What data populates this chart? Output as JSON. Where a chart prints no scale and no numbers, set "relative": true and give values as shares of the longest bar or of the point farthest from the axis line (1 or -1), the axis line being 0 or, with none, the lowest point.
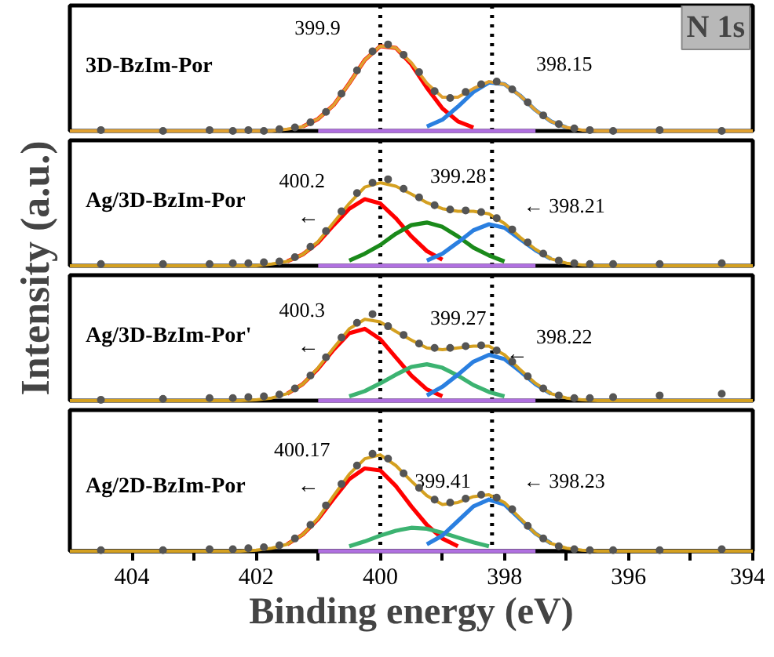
{
  "chart_data": [
    {
      "type": "line",
      "relative": true,
      "title": "3D-BzIm-Por",
      "ylabel": "Intensity (a.u.)",
      "xlim": [
        405,
        394
      ],
      "tick_labels": false,
      "x": [
        405,
        404,
        403,
        402.5,
        402.25,
        402,
        401.75,
        401.5,
        401.25,
        401,
        400.75,
        400.5,
        400.25,
        400,
        399.75,
        399.5,
        399.25,
        399,
        398.75,
        398.5,
        398.25,
        398,
        397.75,
        397.5,
        397.25,
        397,
        396.75,
        396.5,
        396,
        395,
        394
      ],
      "ref_lines": [
        {
          "axis": "x",
          "value": 400,
          "line_style": "dotted",
          "color": "#000000"
        },
        {
          "axis": "x",
          "value": 398.2,
          "line_style": "dotted",
          "color": "#000000"
        }
      ],
      "annotations": [
        "N 1s",
        {
          "text": "399.9",
          "x": 400,
          "y": 0.98
        },
        {
          "text": "398.15",
          "x": 398.25,
          "y": 0.56
        }
      ],
      "series": [
        {
          "color": "#b070e0",
          "values": [
            null,
            null,
            null,
            null,
            null,
            null,
            null,
            null,
            null,
            0,
            0,
            0,
            0,
            0,
            0,
            0,
            0,
            0,
            0,
            0,
            0,
            0,
            0,
            0,
            null,
            null,
            null,
            null,
            null,
            null,
            null
          ]
        },
        {
          "color": "#ff0000",
          "values": [
            null,
            null,
            null,
            null,
            null,
            null,
            null,
            null,
            0.05,
            0.14,
            0.3,
            0.55,
            0.82,
            0.98,
            0.96,
            0.77,
            0.5,
            0.26,
            0.11,
            0.04,
            null,
            null,
            null,
            null,
            null,
            null,
            null,
            null,
            null,
            null,
            null
          ]
        },
        {
          "color": "#2a7fe0",
          "values": [
            null,
            null,
            null,
            null,
            null,
            null,
            null,
            null,
            null,
            null,
            null,
            null,
            null,
            null,
            null,
            null,
            0.05,
            0.13,
            0.28,
            0.45,
            0.56,
            0.54,
            0.41,
            0.24,
            0.11,
            0.04,
            null,
            null,
            null,
            null,
            null
          ]
        },
        {
          "color": "#e0a030",
          "values": [
            0,
            0,
            0,
            0,
            0,
            0,
            0,
            0.02,
            0.05,
            0.14,
            0.3,
            0.55,
            0.82,
            0.98,
            0.96,
            0.79,
            0.55,
            0.39,
            0.39,
            0.49,
            0.57,
            0.54,
            0.41,
            0.24,
            0.11,
            0.04,
            0.01,
            0,
            0,
            0,
            0
          ]
        },
        {
          "type": "scatter",
          "marker": "circle",
          "color": "#555555",
          "x": [
            404.5,
            403.5,
            402.75,
            402.375,
            402.125,
            401.875,
            401.625,
            401.375,
            401.125,
            400.875,
            400.625,
            400.375,
            400.125,
            399.875,
            399.625,
            399.375,
            399.125,
            398.875,
            398.625,
            398.375,
            398.125,
            397.875,
            397.625,
            397.375,
            397.125,
            396.875,
            396.625,
            396.25,
            395.5,
            394.5
          ],
          "values": [
            0.01,
            0.0,
            0.01,
            0.0,
            0.01,
            0.0,
            0.02,
            0.04,
            0.1,
            0.22,
            0.43,
            0.7,
            0.92,
            1.0,
            0.88,
            0.68,
            0.46,
            0.38,
            0.45,
            0.54,
            0.57,
            0.48,
            0.33,
            0.18,
            0.08,
            0.03,
            0.01,
            0.0,
            0.01,
            0.0
          ]
        }
      ]
    },
    {
      "type": "line",
      "relative": true,
      "title": "Ag/3D-BzIm-Por",
      "xlim": [
        405,
        394
      ],
      "tick_labels": false,
      "x": [
        405,
        404,
        403,
        402.5,
        402.25,
        402,
        401.75,
        401.5,
        401.25,
        401,
        400.75,
        400.5,
        400.25,
        400,
        399.75,
        399.5,
        399.25,
        399,
        398.75,
        398.5,
        398.25,
        398,
        397.75,
        397.5,
        397.25,
        397,
        396.75,
        396.5,
        396,
        395,
        394
      ],
      "ref_lines": [
        {
          "axis": "x",
          "value": 400,
          "line_style": "dotted",
          "color": "#000000"
        },
        {
          "axis": "x",
          "value": 398.2,
          "line_style": "dotted",
          "color": "#000000"
        }
      ],
      "annotations": [
        {
          "text": "400.2",
          "x": 400.25,
          "y": 0.77
        },
        {
          "text": "←",
          "x": 400.25,
          "y": 0.77
        },
        {
          "text": "399.28",
          "x": 399.25,
          "y": 0.5
        },
        {
          "text": "← 398.21",
          "x": 398.25,
          "y": 0.48
        }
      ],
      "series": [
        {
          "color": "#b070e0",
          "values": [
            null,
            null,
            null,
            null,
            null,
            null,
            null,
            null,
            null,
            0,
            0,
            0,
            0,
            0,
            0,
            0,
            0,
            0,
            0,
            0,
            0,
            0,
            0,
            0,
            null,
            null,
            null,
            null,
            null,
            null,
            null
          ]
        },
        {
          "color": "#ff0000",
          "values": [
            null,
            null,
            null,
            null,
            null,
            null,
            null,
            0.05,
            0.13,
            0.27,
            0.47,
            0.66,
            0.77,
            0.72,
            0.55,
            0.34,
            0.17,
            0.07,
            null,
            null,
            null,
            null,
            null,
            null,
            null,
            null,
            null,
            null,
            null,
            null,
            null
          ]
        },
        {
          "color": "#1a8a1a",
          "values": [
            null,
            null,
            null,
            null,
            null,
            null,
            null,
            null,
            null,
            null,
            null,
            0.06,
            0.14,
            0.24,
            0.37,
            0.47,
            0.5,
            0.45,
            0.34,
            0.21,
            0.12,
            0.05,
            null,
            null,
            null,
            null,
            null,
            null,
            null,
            null,
            null
          ]
        },
        {
          "color": "#2a7fe0",
          "values": [
            null,
            null,
            null,
            null,
            null,
            null,
            null,
            null,
            null,
            null,
            null,
            null,
            null,
            null,
            null,
            null,
            0.06,
            0.14,
            0.27,
            0.41,
            0.48,
            0.44,
            0.31,
            0.18,
            0.08,
            null,
            null,
            null,
            null,
            null,
            null
          ]
        },
        {
          "color": "#d4a020",
          "values": [
            0,
            0,
            0,
            0,
            0,
            0,
            0.02,
            0.05,
            0.13,
            0.28,
            0.5,
            0.72,
            0.91,
            0.96,
            0.92,
            0.83,
            0.73,
            0.66,
            0.63,
            0.63,
            0.6,
            0.49,
            0.33,
            0.19,
            0.08,
            0.03,
            0.01,
            0,
            0,
            0,
            0
          ]
        },
        {
          "type": "scatter",
          "marker": "circle",
          "color": "#555555",
          "x": [
            404.5,
            403.5,
            402.75,
            402.375,
            402.125,
            401.875,
            401.625,
            401.375,
            401.125,
            400.875,
            400.625,
            400.375,
            400.125,
            399.875,
            399.625,
            399.375,
            399.125,
            398.875,
            398.625,
            398.375,
            398.125,
            397.875,
            397.625,
            397.375,
            397.125,
            396.875,
            396.625,
            396.25,
            395.5,
            394.5
          ],
          "values": [
            0.02,
            0.02,
            0.02,
            0.03,
            0.03,
            0.04,
            0.05,
            0.1,
            0.22,
            0.4,
            0.63,
            0.84,
            0.96,
            1.0,
            0.89,
            0.79,
            0.7,
            0.65,
            0.64,
            0.62,
            0.55,
            0.42,
            0.27,
            0.14,
            0.06,
            0.03,
            0.02,
            0.02,
            0.02,
            0.03
          ]
        }
      ]
    },
    {
      "type": "line",
      "relative": true,
      "title": "Ag/3D-BzIm-Por'",
      "xlim": [
        405,
        394
      ],
      "tick_labels": false,
      "x": [
        405,
        404,
        403,
        402.5,
        402.25,
        402,
        401.75,
        401.5,
        401.25,
        401,
        400.75,
        400.5,
        400.25,
        400,
        399.75,
        399.5,
        399.25,
        399,
        398.75,
        398.5,
        398.25,
        398,
        397.75,
        397.5,
        397.25,
        397,
        396.75,
        396.5,
        396,
        395,
        394
      ],
      "ref_lines": [
        {
          "axis": "x",
          "value": 400,
          "line_style": "dotted",
          "color": "#000000"
        },
        {
          "axis": "x",
          "value": 398.2,
          "line_style": "dotted",
          "color": "#000000"
        }
      ],
      "annotations": [
        {
          "text": "400.3",
          "x": 400.25,
          "y": 0.83
        },
        {
          "text": "←",
          "x": 400.25,
          "y": 0.83
        },
        {
          "text": "399.27",
          "x": 399.25,
          "y": 0.42
        },
        {
          "text": "398.22",
          "x": 398.25,
          "y": 0.53
        },
        {
          "text": "←",
          "x": 398.25,
          "y": 0.53
        }
      ],
      "series": [
        {
          "color": "#b070e0",
          "values": [
            null,
            null,
            null,
            null,
            null,
            null,
            null,
            null,
            null,
            0,
            0,
            0,
            0,
            0,
            0,
            0,
            0,
            0,
            0,
            0,
            0,
            0,
            0,
            0,
            null,
            null,
            null,
            null,
            null,
            null,
            null
          ]
        },
        {
          "color": "#ff0000",
          "values": [
            null,
            null,
            null,
            null,
            null,
            null,
            null,
            0.08,
            0.19,
            0.37,
            0.59,
            0.78,
            0.83,
            0.71,
            0.5,
            0.29,
            0.13,
            0.05,
            null,
            null,
            null,
            null,
            null,
            null,
            null,
            null,
            null,
            null,
            null,
            null,
            null
          ]
        },
        {
          "color": "#3cb371",
          "values": [
            null,
            null,
            null,
            null,
            null,
            null,
            null,
            null,
            null,
            null,
            null,
            0.05,
            0.11,
            0.2,
            0.3,
            0.39,
            0.42,
            0.38,
            0.29,
            0.18,
            0.1,
            0.05,
            null,
            null,
            null,
            null,
            null,
            null,
            null,
            null,
            null
          ]
        },
        {
          "color": "#2a7fe0",
          "values": [
            null,
            null,
            null,
            null,
            null,
            null,
            null,
            null,
            null,
            null,
            null,
            null,
            null,
            null,
            null,
            null,
            0.06,
            0.16,
            0.3,
            0.45,
            0.53,
            0.48,
            0.34,
            0.19,
            0.08,
            null,
            null,
            null,
            null,
            null,
            null
          ]
        },
        {
          "color": "#d4a020",
          "values": [
            0,
            0,
            0,
            0,
            0,
            0.01,
            0.03,
            0.08,
            0.19,
            0.38,
            0.61,
            0.83,
            0.94,
            0.91,
            0.8,
            0.7,
            0.61,
            0.59,
            0.61,
            0.63,
            0.63,
            0.53,
            0.36,
            0.2,
            0.08,
            0.03,
            0.01,
            0,
            0,
            0,
            0
          ]
        },
        {
          "type": "scatter",
          "marker": "circle",
          "color": "#555555",
          "x": [
            404.5,
            403.5,
            402.75,
            402.375,
            402.125,
            401.875,
            401.625,
            401.375,
            401.125,
            400.875,
            400.625,
            400.375,
            400.125,
            399.875,
            399.625,
            399.375,
            399.125,
            398.875,
            398.625,
            398.375,
            398.125,
            397.875,
            397.625,
            397.375,
            397.125,
            396.875,
            396.625,
            396.25,
            395.5,
            394.5
          ],
          "values": [
            0.01,
            0.02,
            0.03,
            0.03,
            0.04,
            0.05,
            0.07,
            0.14,
            0.29,
            0.5,
            0.73,
            0.9,
            1.0,
            0.86,
            0.76,
            0.66,
            0.61,
            0.61,
            0.63,
            0.64,
            0.58,
            0.45,
            0.28,
            0.14,
            0.06,
            0.03,
            0.03,
            0.04,
            0.06,
            0.08
          ]
        }
      ]
    },
    {
      "type": "line",
      "relative": true,
      "title": "Ag/2D-BzIm-Por",
      "xlabel": "Binding energy (eV)",
      "xlim": [
        405,
        394
      ],
      "tick_labels": "x",
      "xticks": [
        404,
        {
          "value": 403,
          "label": null
        },
        402,
        {
          "value": 401,
          "label": null
        },
        400,
        {
          "value": 399,
          "label": null
        },
        398,
        {
          "value": 397,
          "label": null
        },
        396,
        {
          "value": 395,
          "label": null
        },
        394
      ],
      "x": [
        405,
        404,
        403,
        402.5,
        402.25,
        402,
        401.75,
        401.5,
        401.25,
        401,
        400.75,
        400.5,
        400.25,
        400,
        399.75,
        399.5,
        399.25,
        399,
        398.75,
        398.5,
        398.25,
        398,
        397.75,
        397.5,
        397.25,
        397,
        396.75,
        396.5,
        396,
        395,
        394
      ],
      "ref_lines": [
        {
          "axis": "x",
          "value": 400,
          "line_style": "dotted",
          "color": "#000000"
        },
        {
          "axis": "x",
          "value": 398.2,
          "line_style": "dotted",
          "color": "#000000"
        }
      ],
      "annotations": [
        {
          "text": "400.17",
          "x": 400.25,
          "y": 0.85
        },
        {
          "text": "←",
          "x": 400.25,
          "y": 0.85
        },
        {
          "text": "399.41",
          "x": 399.5,
          "y": 0.24
        },
        {
          "text": "← 398.23",
          "x": 398.25,
          "y": 0.53
        }
      ],
      "series": [
        {
          "color": "#b070e0",
          "values": [
            null,
            null,
            null,
            null,
            null,
            null,
            null,
            null,
            null,
            0,
            0,
            0,
            0,
            0,
            0,
            0,
            0,
            0,
            0,
            0,
            0,
            0,
            0,
            0,
            null,
            null,
            null,
            null,
            null,
            null,
            null
          ]
        },
        {
          "color": "#ff0000",
          "values": [
            null,
            null,
            null,
            null,
            null,
            null,
            null,
            0.07,
            0.17,
            0.33,
            0.54,
            0.74,
            0.85,
            0.83,
            0.67,
            0.46,
            0.27,
            0.13,
            0.05,
            null,
            null,
            null,
            null,
            null,
            null,
            null,
            null,
            null,
            null,
            null,
            null
          ]
        },
        {
          "color": "#3cb371",
          "values": [
            null,
            null,
            null,
            null,
            null,
            null,
            null,
            null,
            null,
            null,
            null,
            0.05,
            0.1,
            0.16,
            0.21,
            0.24,
            0.23,
            0.19,
            0.14,
            0.09,
            0.05,
            null,
            null,
            null,
            null,
            null,
            null,
            null,
            null,
            null,
            null
          ]
        },
        {
          "color": "#2a7fe0",
          "values": [
            null,
            null,
            null,
            null,
            null,
            null,
            null,
            null,
            null,
            null,
            null,
            null,
            null,
            null,
            null,
            null,
            0.07,
            0.16,
            0.31,
            0.46,
            0.53,
            0.48,
            0.33,
            0.18,
            0.08,
            null,
            null,
            null,
            null,
            null,
            null
          ]
        },
        {
          "color": "#d4a020",
          "values": [
            0,
            0,
            0,
            0,
            0,
            0.01,
            0.03,
            0.07,
            0.17,
            0.34,
            0.57,
            0.79,
            0.95,
            0.99,
            0.88,
            0.72,
            0.57,
            0.48,
            0.5,
            0.56,
            0.58,
            0.5,
            0.34,
            0.18,
            0.08,
            0.03,
            0.01,
            0,
            0,
            0,
            0
          ]
        },
        {
          "type": "scatter",
          "marker": "circle",
          "color": "#555555",
          "x": [
            404.5,
            403.5,
            402.75,
            402.375,
            402.125,
            401.875,
            401.625,
            401.375,
            401.125,
            400.875,
            400.625,
            400.375,
            400.125,
            399.875,
            399.625,
            399.375,
            399.125,
            398.875,
            398.625,
            398.375,
            398.125,
            397.875,
            397.625,
            397.375,
            397.125,
            396.875,
            396.625,
            396.25,
            395.5,
            394.5
          ],
          "values": [
            0.01,
            0.01,
            0.02,
            0.02,
            0.03,
            0.04,
            0.06,
            0.13,
            0.27,
            0.47,
            0.69,
            0.88,
            1.0,
            0.95,
            0.8,
            0.65,
            0.53,
            0.5,
            0.54,
            0.58,
            0.55,
            0.43,
            0.26,
            0.13,
            0.05,
            0.02,
            0.01,
            0.01,
            0.01,
            0.02
          ]
        }
      ]
    }
  ]
}
